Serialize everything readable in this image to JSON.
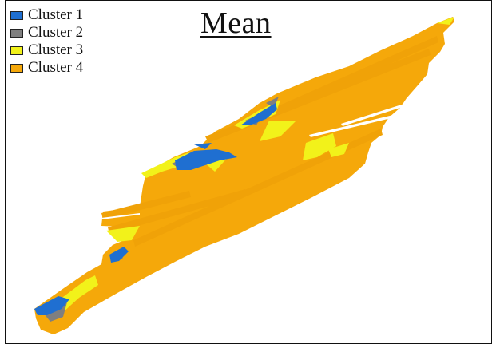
{
  "title": "Mean",
  "legend": {
    "items": [
      {
        "label": "Cluster 1",
        "color": "#1f6fd1"
      },
      {
        "label": "Cluster 2",
        "color": "#7f7f7f"
      },
      {
        "label": "Cluster 3",
        "color": "#f2f21a"
      },
      {
        "label": "Cluster 4",
        "color": "#f5a80a"
      }
    ]
  }
}
